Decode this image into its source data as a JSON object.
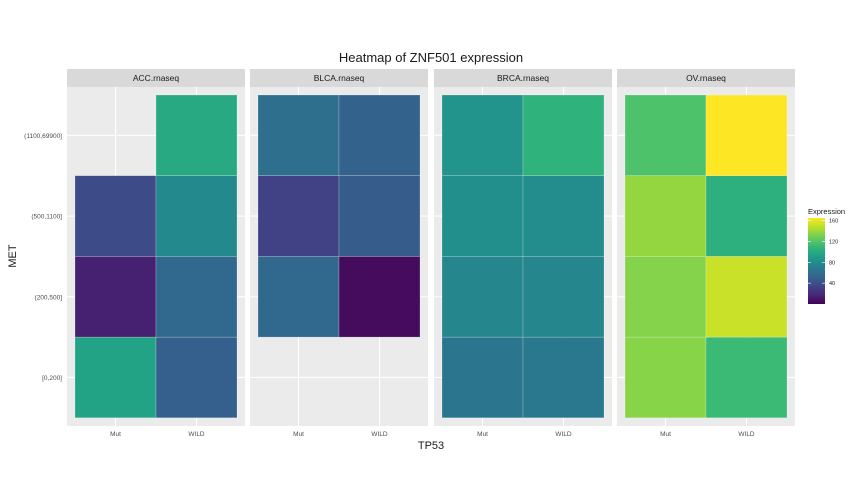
{
  "chart_data": {
    "type": "heatmap",
    "title": "Heatmap of ZNF501 expression",
    "xlabel": "TP53",
    "ylabel": "MET",
    "x_categories": [
      "Mut",
      "WILD"
    ],
    "y_categories": [
      "[0,200]",
      "(200,500]",
      "(500,1100]",
      "(1100,69900]"
    ],
    "facets": [
      {
        "name": "ACC.rnaseq",
        "cells": [
          {
            "x": "Mut",
            "y": "[0,200]",
            "value": 95
          },
          {
            "x": "WILD",
            "y": "[0,200]",
            "value": 50
          },
          {
            "x": "Mut",
            "y": "(200,500]",
            "value": 15
          },
          {
            "x": "WILD",
            "y": "(200,500]",
            "value": 55
          },
          {
            "x": "Mut",
            "y": "(500,1100]",
            "value": 38
          },
          {
            "x": "WILD",
            "y": "(500,1100]",
            "value": 78
          },
          {
            "x": "WILD",
            "y": "(1100,69900]",
            "value": 100
          }
        ]
      },
      {
        "name": "BLCA.rnaseq",
        "cells": [
          {
            "x": "Mut",
            "y": "(200,500]",
            "value": 55
          },
          {
            "x": "WILD",
            "y": "(200,500]",
            "value": 5
          },
          {
            "x": "Mut",
            "y": "(500,1100]",
            "value": 32
          },
          {
            "x": "WILD",
            "y": "(500,1100]",
            "value": 48
          },
          {
            "x": "Mut",
            "y": "(1100,69900]",
            "value": 60
          },
          {
            "x": "WILD",
            "y": "(1100,69900]",
            "value": 52
          }
        ]
      },
      {
        "name": "BRCA.rnaseq",
        "cells": [
          {
            "x": "Mut",
            "y": "[0,200]",
            "value": 65
          },
          {
            "x": "WILD",
            "y": "[0,200]",
            "value": 66
          },
          {
            "x": "Mut",
            "y": "(200,500]",
            "value": 76
          },
          {
            "x": "WILD",
            "y": "(200,500]",
            "value": 76
          },
          {
            "x": "Mut",
            "y": "(500,1100]",
            "value": 82
          },
          {
            "x": "WILD",
            "y": "(500,1100]",
            "value": 80
          },
          {
            "x": "Mut",
            "y": "(1100,69900]",
            "value": 85
          },
          {
            "x": "WILD",
            "y": "(1100,69900]",
            "value": 106
          }
        ]
      },
      {
        "name": "OV.rnaseq",
        "cells": [
          {
            "x": "Mut",
            "y": "[0,200]",
            "value": 135
          },
          {
            "x": "WILD",
            "y": "[0,200]",
            "value": 112
          },
          {
            "x": "Mut",
            "y": "(200,500]",
            "value": 134
          },
          {
            "x": "WILD",
            "y": "(200,500]",
            "value": 152
          },
          {
            "x": "Mut",
            "y": "(500,1100]",
            "value": 138
          },
          {
            "x": "WILD",
            "y": "(500,1100]",
            "value": 104
          },
          {
            "x": "Mut",
            "y": "(1100,69900]",
            "value": 118
          },
          {
            "x": "WILD",
            "y": "(1100,69900]",
            "value": 165
          }
        ]
      }
    ],
    "legend": {
      "title": "Expression",
      "ticks": [
        40,
        80,
        120,
        160
      ],
      "range": [
        0,
        165
      ],
      "colormap": "viridis",
      "placement": "right"
    },
    "colors": {
      "panel_background": "#ebebeb",
      "strip_background": "#d9d9d9",
      "grid": "#ffffff",
      "viridis": [
        "#440154",
        "#482878",
        "#3e4989",
        "#31688e",
        "#26828e",
        "#1f9e89",
        "#35b779",
        "#6ece58",
        "#b5de2b",
        "#fde725"
      ]
    }
  }
}
